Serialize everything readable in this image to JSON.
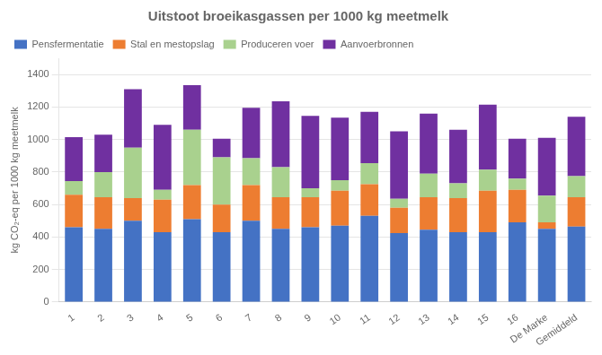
{
  "chart_data": {
    "type": "bar",
    "title": "Uitstoot broeikasgassen per 1000 kg meetmelk",
    "ylabel": "kg CO₂-eq per 1000 kg meetmelk",
    "categories": [
      "1",
      "2",
      "3",
      "4",
      "5",
      "6",
      "7",
      "8",
      "9",
      "10",
      "11",
      "12",
      "13",
      "14",
      "15",
      "16",
      "De Marke",
      "Gemiddeld"
    ],
    "series": [
      {
        "name": "Pensfermentatie",
        "color": "#4472C4",
        "values": [
          460,
          450,
          500,
          430,
          510,
          430,
          500,
          450,
          460,
          470,
          530,
          425,
          445,
          430,
          430,
          490,
          450,
          465
        ]
      },
      {
        "name": "Stal en mestopslag",
        "color": "#ED7D31",
        "values": [
          200,
          195,
          140,
          200,
          210,
          170,
          220,
          195,
          185,
          215,
          195,
          155,
          200,
          210,
          255,
          200,
          40,
          180
        ]
      },
      {
        "name": "Produceren voer",
        "color": "#A9D18E",
        "values": [
          85,
          155,
          310,
          60,
          340,
          290,
          165,
          185,
          55,
          65,
          130,
          55,
          145,
          90,
          130,
          70,
          165,
          130
        ]
      },
      {
        "name": "Aanvoerbronnen",
        "color": "#7030A0",
        "values": [
          270,
          230,
          360,
          400,
          275,
          115,
          310,
          405,
          445,
          385,
          315,
          415,
          370,
          330,
          400,
          245,
          355,
          365
        ]
      }
    ],
    "stacked": true,
    "ylim": [
      0,
      1500
    ],
    "yticks": [
      0,
      200,
      400,
      600,
      800,
      1000,
      1200,
      1400
    ],
    "grid": true,
    "legend": "upper left"
  }
}
